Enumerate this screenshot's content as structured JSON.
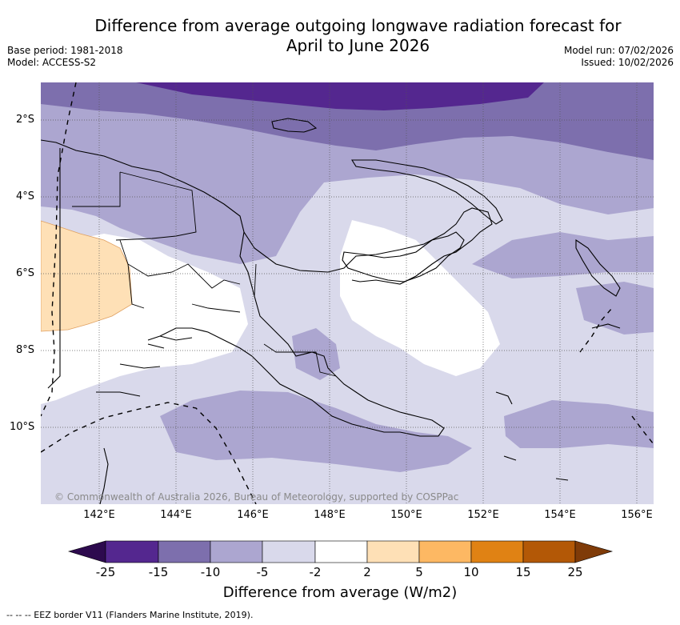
{
  "title": {
    "line1": "Difference from average outgoing longwave radiation forecast for",
    "line2": "April to June 2026"
  },
  "meta": {
    "base_period": "Base period: 1981-2018",
    "model": "Model: ACCESS-S2",
    "model_run": "Model run: 07/02/2026",
    "issued": "Issued: 10/02/2026"
  },
  "map": {
    "lat_labels": [
      "2°S",
      "4°S",
      "6°S",
      "8°S",
      "10°S"
    ],
    "lon_labels": [
      "142°E",
      "144°E",
      "146°E",
      "148°E",
      "150°E",
      "152°E",
      "154°E",
      "156°E"
    ],
    "copyright": "© Commonwealth of Australia 2026, Bureau of Meteorology, supported by COSPPac"
  },
  "colorbar": {
    "ticks": [
      "-25",
      "-15",
      "-10",
      "-5",
      "-2",
      "2",
      "5",
      "10",
      "15",
      "25"
    ],
    "colors": [
      "#2d0a4e",
      "#54278f",
      "#7d6fad",
      "#aca6d0",
      "#d9d9eb",
      "#ffffff",
      "#fee0b6",
      "#fdb863",
      "#e08214",
      "#b35806",
      "#7f3b08"
    ],
    "label": "Difference from average (W/m2)"
  },
  "footer": "-- -- -- EEZ border V11 (Flanders Marine Institute, 2019)."
}
